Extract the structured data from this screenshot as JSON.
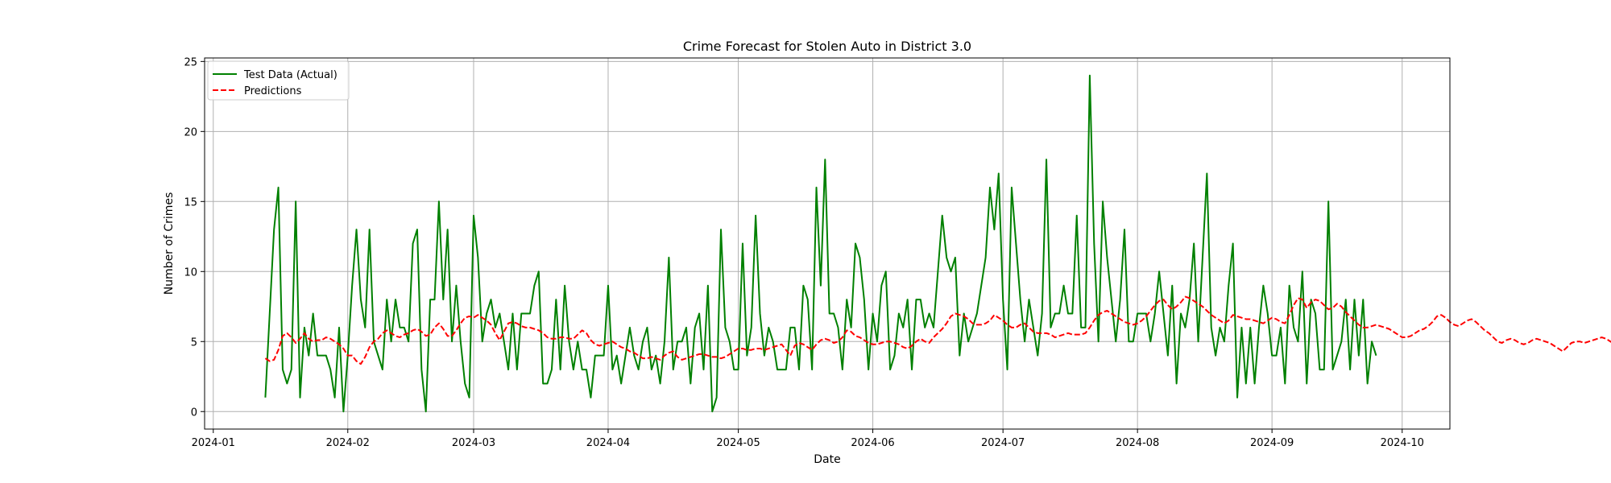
{
  "chart_data": {
    "type": "line",
    "title": "Crime Forecast for Stolen Auto in District 3.0",
    "xlabel": "Date",
    "ylabel": "Number of Crimes",
    "xlim": [
      "2023-12-30",
      "2024-10-12"
    ],
    "ylim": [
      -1.25,
      25.25
    ],
    "x_ticks": [
      "2024-01-01",
      "2024-02-01",
      "2024-03-01",
      "2024-04-01",
      "2024-05-01",
      "2024-06-01",
      "2024-07-01",
      "2024-08-01",
      "2024-09-01",
      "2024-10-01"
    ],
    "x_tick_labels": [
      "2024-01",
      "2024-02",
      "2024-03",
      "2024-04",
      "2024-05",
      "2024-06",
      "2024-07",
      "2024-08",
      "2024-09",
      "2024-10"
    ],
    "y_ticks": [
      0,
      5,
      10,
      15,
      20,
      25
    ],
    "grid": true,
    "legend_position": "top-left",
    "series": [
      {
        "name": "Test Data (Actual)",
        "color": "#008000",
        "style": "solid",
        "x_start": "2024-01-13",
        "values": [
          1,
          7,
          13,
          16,
          3,
          2,
          3,
          15,
          1,
          6,
          4,
          7,
          4,
          4,
          4,
          3,
          1,
          6,
          0,
          4,
          9,
          13,
          8,
          6,
          13,
          5,
          4,
          3,
          8,
          5,
          8,
          6,
          6,
          5,
          12,
          13,
          3,
          0,
          8,
          8,
          15,
          8,
          13,
          5,
          9,
          5,
          2,
          1,
          14,
          11,
          5,
          7,
          8,
          6,
          7,
          5,
          3,
          7,
          3,
          7,
          7,
          7,
          9,
          10,
          2,
          2,
          3,
          8,
          3,
          9,
          5,
          3,
          5,
          3,
          3,
          1,
          4,
          4,
          4,
          9,
          3,
          4,
          2,
          4,
          6,
          4,
          3,
          5,
          6,
          3,
          4,
          2,
          5,
          11,
          3,
          5,
          5,
          6,
          2,
          6,
          7,
          3,
          9,
          0,
          1,
          13,
          6,
          5,
          3,
          3,
          12,
          4,
          6,
          14,
          7,
          4,
          6,
          5,
          3,
          3,
          3,
          6,
          6,
          3,
          9,
          8,
          3,
          16,
          9,
          18,
          7,
          7,
          6,
          3,
          8,
          6,
          12,
          11,
          8,
          3,
          7,
          5,
          9,
          10,
          3,
          4,
          7,
          6,
          8,
          3,
          8,
          8,
          6,
          7,
          6,
          10,
          14,
          11,
          10,
          11,
          4,
          7,
          5,
          6,
          7,
          9,
          11,
          16,
          13,
          17,
          8,
          3,
          16,
          12,
          8,
          5,
          8,
          6,
          4,
          7,
          18,
          6,
          7,
          7,
          9,
          7,
          7,
          14,
          6,
          6,
          24,
          12,
          5,
          15,
          11,
          8,
          5,
          8,
          13,
          5,
          5,
          7,
          7,
          7,
          5,
          7,
          10,
          7,
          4,
          9,
          2,
          7,
          6,
          8,
          12,
          5,
          11,
          17,
          6,
          4,
          6,
          5,
          9,
          12,
          1,
          6,
          2,
          6,
          2,
          6,
          9,
          7,
          4,
          4,
          6,
          2,
          9,
          6,
          5,
          10,
          2,
          8,
          7,
          3,
          3,
          15,
          3,
          4,
          5,
          8,
          3,
          8,
          4,
          8,
          2,
          5,
          4
        ]
      },
      {
        "name": "Predictions",
        "color": "#ff0000",
        "style": "dashed",
        "x_start": "2024-01-13",
        "values": [
          3.8,
          3.6,
          3.7,
          4.4,
          5.4,
          5.6,
          5.3,
          4.9,
          5.2,
          5.6,
          5.2,
          5.0,
          5.1,
          5.1,
          5.3,
          5.2,
          5.0,
          4.8,
          4.5,
          4.0,
          4.0,
          3.6,
          3.4,
          3.9,
          4.6,
          5.0,
          5.2,
          5.6,
          5.8,
          5.6,
          5.4,
          5.3,
          5.5,
          5.6,
          5.8,
          5.9,
          5.7,
          5.4,
          5.5,
          6.0,
          6.3,
          5.9,
          5.4,
          5.4,
          5.8,
          6.3,
          6.7,
          6.8,
          6.7,
          6.9,
          6.7,
          6.5,
          6.2,
          5.6,
          5.1,
          5.7,
          6.3,
          6.4,
          6.3,
          6.1,
          6.0,
          6.0,
          5.9,
          5.8,
          5.6,
          5.3,
          5.2,
          5.2,
          5.3,
          5.3,
          5.2,
          5.2,
          5.5,
          5.8,
          5.6,
          5.1,
          4.8,
          4.7,
          4.8,
          4.9,
          5.0,
          4.8,
          4.6,
          4.5,
          4.3,
          4.2,
          4.0,
          3.8,
          3.8,
          3.9,
          3.8,
          3.7,
          4.0,
          4.2,
          4.3,
          3.9,
          3.7,
          3.8,
          3.9,
          4.0,
          4.1,
          4.1,
          4.0,
          3.9,
          3.9,
          3.8,
          3.9,
          4.1,
          4.3,
          4.5,
          4.5,
          4.4,
          4.4,
          4.5,
          4.5,
          4.4,
          4.5,
          4.6,
          4.7,
          4.8,
          4.4,
          4.0,
          4.7,
          4.9,
          4.8,
          4.6,
          4.4,
          4.8,
          5.1,
          5.2,
          5.1,
          4.9,
          5.0,
          5.3,
          5.8,
          5.7,
          5.4,
          5.3,
          5.1,
          4.9,
          4.8,
          4.8,
          4.9,
          5.0,
          5.0,
          4.9,
          4.8,
          4.6,
          4.5,
          4.7,
          5.0,
          5.2,
          5.0,
          4.9,
          5.3,
          5.6,
          5.9,
          6.3,
          6.8,
          7.0,
          6.9,
          6.8,
          6.6,
          6.3,
          6.2,
          6.2,
          6.3,
          6.5,
          6.9,
          6.7,
          6.5,
          6.2,
          6.0,
          6.0,
          6.2,
          6.3,
          6.0,
          5.7,
          5.6,
          5.6,
          5.6,
          5.5,
          5.3,
          5.4,
          5.5,
          5.6,
          5.5,
          5.5,
          5.5,
          5.6,
          6.0,
          6.5,
          6.9,
          7.1,
          7.2,
          7.0,
          6.8,
          6.6,
          6.4,
          6.3,
          6.2,
          6.3,
          6.5,
          6.8,
          7.2,
          7.6,
          7.9,
          8.0,
          7.6,
          7.3,
          7.5,
          7.8,
          8.2,
          8.1,
          7.9,
          7.7,
          7.5,
          7.2,
          6.9,
          6.7,
          6.5,
          6.3,
          6.5,
          6.9,
          6.8,
          6.7,
          6.6,
          6.6,
          6.5,
          6.4,
          6.3,
          6.5,
          6.7,
          6.6,
          6.4,
          6.3,
          6.9,
          7.6,
          8.1,
          8.0,
          7.4,
          7.8,
          8.0,
          7.9,
          7.6,
          7.3,
          7.4,
          7.7,
          7.5,
          7.1,
          6.8,
          6.5,
          6.2,
          6.0,
          6.0,
          6.1,
          6.2,
          6.1,
          6.0,
          5.9,
          5.7,
          5.5,
          5.3,
          5.3,
          5.4,
          5.6,
          5.8,
          5.9,
          6.1,
          6.4,
          6.8,
          6.9,
          6.7,
          6.4,
          6.2,
          6.1,
          6.3,
          6.5,
          6.6,
          6.4,
          6.1,
          5.8,
          5.6,
          5.3,
          5.0,
          4.9,
          5.1,
          5.2,
          5.1,
          4.9,
          4.8,
          4.9,
          5.1,
          5.2,
          5.1,
          5.0,
          4.9,
          4.7,
          4.5,
          4.3,
          4.6,
          4.9,
          5.0,
          5.0,
          4.9,
          5.0,
          5.1,
          5.2,
          5.3,
          5.2,
          5.0,
          4.8,
          4.9,
          5.5,
          5.4,
          5.3,
          5.1,
          5.0,
          5.1,
          5.2,
          5.1,
          5.0,
          4.9,
          5.0,
          5.1,
          5.0,
          4.8
        ]
      }
    ]
  }
}
